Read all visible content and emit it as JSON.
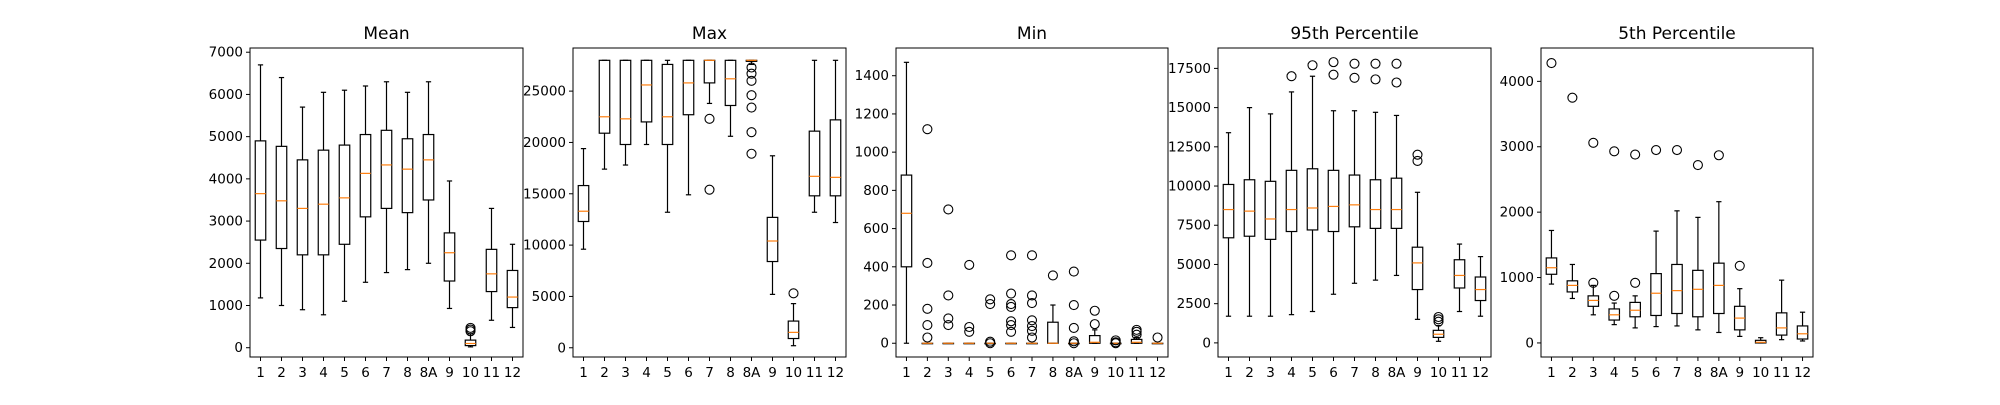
{
  "style": {
    "box_color": "#000000",
    "median_color": "#ff7f0e",
    "flier_color": "#000000",
    "background": "#ffffff"
  },
  "chart_data": [
    {
      "type": "boxplot",
      "title": "Mean",
      "categories": [
        "1",
        "2",
        "3",
        "4",
        "5",
        "6",
        "7",
        "8",
        "8A",
        "9",
        "10",
        "11",
        "12"
      ],
      "ylim": [
        -220,
        7100
      ],
      "yticks": [
        0,
        1000,
        2000,
        3000,
        4000,
        5000,
        6000,
        7000
      ],
      "ytick_labels": [
        "0",
        "1000",
        "2000",
        "3000",
        "4000",
        "5000",
        "6000",
        "7000"
      ],
      "boxes": [
        {
          "whislo": 1180,
          "q1": 2550,
          "med": 3650,
          "q3": 4900,
          "whishi": 6700,
          "fliers": []
        },
        {
          "whislo": 1000,
          "q1": 2350,
          "med": 3480,
          "q3": 4770,
          "whishi": 6400,
          "fliers": []
        },
        {
          "whislo": 900,
          "q1": 2200,
          "med": 3300,
          "q3": 4450,
          "whishi": 5700,
          "fliers": []
        },
        {
          "whislo": 780,
          "q1": 2200,
          "med": 3400,
          "q3": 4680,
          "whishi": 6050,
          "fliers": []
        },
        {
          "whislo": 1100,
          "q1": 2450,
          "med": 3550,
          "q3": 4800,
          "whishi": 6100,
          "fliers": []
        },
        {
          "whislo": 1550,
          "q1": 3100,
          "med": 4130,
          "q3": 5050,
          "whishi": 6200,
          "fliers": []
        },
        {
          "whislo": 1780,
          "q1": 3300,
          "med": 4330,
          "q3": 5150,
          "whishi": 6300,
          "fliers": []
        },
        {
          "whislo": 1850,
          "q1": 3200,
          "med": 4230,
          "q3": 4950,
          "whishi": 6050,
          "fliers": []
        },
        {
          "whislo": 2000,
          "q1": 3500,
          "med": 4450,
          "q3": 5050,
          "whishi": 6300,
          "fliers": []
        },
        {
          "whislo": 930,
          "q1": 1580,
          "med": 2250,
          "q3": 2720,
          "whishi": 3950,
          "fliers": []
        },
        {
          "whislo": 20,
          "q1": 50,
          "med": 100,
          "q3": 180,
          "whishi": 330,
          "fliers": [
            390,
            430,
            470
          ]
        },
        {
          "whislo": 650,
          "q1": 1330,
          "med": 1750,
          "q3": 2330,
          "whishi": 3300,
          "fliers": []
        },
        {
          "whislo": 480,
          "q1": 950,
          "med": 1200,
          "q3": 1830,
          "whishi": 2450,
          "fliers": []
        }
      ]
    },
    {
      "type": "boxplot",
      "title": "Max",
      "categories": [
        "1",
        "2",
        "3",
        "4",
        "5",
        "6",
        "7",
        "8",
        "8A",
        "9",
        "10",
        "11",
        "12"
      ],
      "ylim": [
        -900,
        29200
      ],
      "yticks": [
        0,
        5000,
        10000,
        15000,
        20000,
        25000
      ],
      "ytick_labels": [
        "0",
        "5000",
        "10000",
        "15000",
        "20000",
        "25000"
      ],
      "boxes": [
        {
          "whislo": 9600,
          "q1": 12300,
          "med": 13300,
          "q3": 15800,
          "whishi": 19400,
          "fliers": []
        },
        {
          "whislo": 17400,
          "q1": 20900,
          "med": 22500,
          "q3": 28000,
          "whishi": 28000,
          "fliers": []
        },
        {
          "whislo": 17800,
          "q1": 19800,
          "med": 22300,
          "q3": 28000,
          "whishi": 28000,
          "fliers": []
        },
        {
          "whislo": 19800,
          "q1": 22000,
          "med": 25600,
          "q3": 28000,
          "whishi": 28000,
          "fliers": []
        },
        {
          "whislo": 13200,
          "q1": 19800,
          "med": 22500,
          "q3": 27600,
          "whishi": 28000,
          "fliers": []
        },
        {
          "whislo": 14900,
          "q1": 22700,
          "med": 25800,
          "q3": 28000,
          "whishi": 28000,
          "fliers": []
        },
        {
          "whislo": 23800,
          "q1": 25800,
          "med": 28000,
          "q3": 28000,
          "whishi": 28000,
          "fliers": [
            22300,
            15400
          ]
        },
        {
          "whislo": 20600,
          "q1": 23600,
          "med": 26200,
          "q3": 28000,
          "whishi": 28000,
          "fliers": []
        },
        {
          "whislo": 27600,
          "q1": 27900,
          "med": 28000,
          "q3": 28000,
          "whishi": 28000,
          "fliers": [
            27300,
            26700,
            26000,
            24600,
            23400,
            21000,
            18900
          ]
        },
        {
          "whislo": 5200,
          "q1": 8400,
          "med": 10400,
          "q3": 12700,
          "whishi": 18700,
          "fliers": []
        },
        {
          "whislo": 200,
          "q1": 900,
          "med": 1500,
          "q3": 2600,
          "whishi": 4300,
          "fliers": [
            5300
          ]
        },
        {
          "whislo": 13200,
          "q1": 14800,
          "med": 16700,
          "q3": 21100,
          "whishi": 28000,
          "fliers": []
        },
        {
          "whislo": 12200,
          "q1": 14800,
          "med": 16600,
          "q3": 22200,
          "whishi": 28000,
          "fliers": []
        }
      ]
    },
    {
      "type": "boxplot",
      "title": "Min",
      "categories": [
        "1",
        "2",
        "3",
        "4",
        "5",
        "6",
        "7",
        "8",
        "8A",
        "9",
        "10",
        "11",
        "12"
      ],
      "ylim": [
        -72,
        1545
      ],
      "yticks": [
        0,
        200,
        400,
        600,
        800,
        1000,
        1200,
        1400
      ],
      "ytick_labels": [
        "0",
        "200",
        "400",
        "600",
        "800",
        "1000",
        "1200",
        "1400"
      ],
      "boxes": [
        {
          "whislo": 0,
          "q1": 400,
          "med": 680,
          "q3": 880,
          "whishi": 1470,
          "fliers": []
        },
        {
          "whislo": 0,
          "q1": 0,
          "med": 0,
          "q3": 0,
          "whishi": 0,
          "fliers": [
            30,
            95,
            180,
            420,
            1120
          ]
        },
        {
          "whislo": 0,
          "q1": 0,
          "med": 0,
          "q3": 0,
          "whishi": 0,
          "fliers": [
            95,
            130,
            250,
            700
          ]
        },
        {
          "whislo": 0,
          "q1": 0,
          "med": 0,
          "q3": 0,
          "whishi": 0,
          "fliers": [
            60,
            85,
            410
          ]
        },
        {
          "whislo": 0,
          "q1": 0,
          "med": 0,
          "q3": 0,
          "whishi": 0,
          "fliers": [
            0,
            8,
            205,
            230
          ]
        },
        {
          "whislo": 0,
          "q1": 0,
          "med": 0,
          "q3": 0,
          "whishi": 0,
          "fliers": [
            60,
            95,
            115,
            190,
            205,
            260,
            460
          ]
        },
        {
          "whislo": 0,
          "q1": 0,
          "med": 0,
          "q3": 0,
          "whishi": 0,
          "fliers": [
            30,
            65,
            90,
            120,
            210,
            250,
            460
          ]
        },
        {
          "whislo": 0,
          "q1": 0,
          "med": 0,
          "q3": 110,
          "whishi": 200,
          "fliers": [
            355
          ]
        },
        {
          "whislo": 0,
          "q1": 0,
          "med": 0,
          "q3": 0,
          "whishi": 0,
          "fliers": [
            0,
            10,
            80,
            200,
            375
          ]
        },
        {
          "whislo": 0,
          "q1": 0,
          "med": 5,
          "q3": 40,
          "whishi": 70,
          "fliers": [
            100,
            170
          ]
        },
        {
          "whislo": 0,
          "q1": 0,
          "med": 0,
          "q3": 0,
          "whishi": 0,
          "fliers": [
            0,
            5,
            15
          ]
        },
        {
          "whislo": 0,
          "q1": 0,
          "med": 5,
          "q3": 20,
          "whishi": 30,
          "fliers": [
            45,
            60,
            70
          ]
        },
        {
          "whislo": 0,
          "q1": 0,
          "med": 0,
          "q3": 0,
          "whishi": 0,
          "fliers": [
            30
          ]
        }
      ]
    },
    {
      "type": "boxplot",
      "title": "95th Percentile",
      "categories": [
        "1",
        "2",
        "3",
        "4",
        "5",
        "6",
        "7",
        "8",
        "8A",
        "9",
        "10",
        "11",
        "12"
      ],
      "ylim": [
        -900,
        18800
      ],
      "yticks": [
        0,
        2500,
        5000,
        7500,
        10000,
        12500,
        15000,
        17500
      ],
      "ytick_labels": [
        "0",
        "2500",
        "5000",
        "7500",
        "10000",
        "12500",
        "15000",
        "17500"
      ],
      "boxes": [
        {
          "whislo": 1700,
          "q1": 6700,
          "med": 8500,
          "q3": 10100,
          "whishi": 13400,
          "fliers": []
        },
        {
          "whislo": 1700,
          "q1": 6800,
          "med": 8400,
          "q3": 10400,
          "whishi": 15000,
          "fliers": []
        },
        {
          "whislo": 1700,
          "q1": 6600,
          "med": 7900,
          "q3": 10300,
          "whishi": 14600,
          "fliers": []
        },
        {
          "whislo": 1800,
          "q1": 7100,
          "med": 8500,
          "q3": 11000,
          "whishi": 16000,
          "fliers": [
            17000
          ]
        },
        {
          "whislo": 2000,
          "q1": 7200,
          "med": 8600,
          "q3": 11100,
          "whishi": 17000,
          "fliers": [
            17700
          ]
        },
        {
          "whislo": 3100,
          "q1": 7100,
          "med": 8700,
          "q3": 11000,
          "whishi": 14800,
          "fliers": [
            17100,
            17900
          ]
        },
        {
          "whislo": 3800,
          "q1": 7400,
          "med": 8800,
          "q3": 10700,
          "whishi": 14800,
          "fliers": [
            16900,
            17800
          ]
        },
        {
          "whislo": 4000,
          "q1": 7300,
          "med": 8500,
          "q3": 10400,
          "whishi": 14700,
          "fliers": [
            16800,
            17800
          ]
        },
        {
          "whislo": 4300,
          "q1": 7300,
          "med": 8500,
          "q3": 10500,
          "whishi": 14500,
          "fliers": [
            16600,
            17800
          ]
        },
        {
          "whislo": 1500,
          "q1": 3400,
          "med": 5100,
          "q3": 6100,
          "whishi": 9600,
          "fliers": [
            11600,
            12000
          ]
        },
        {
          "whislo": 100,
          "q1": 350,
          "med": 550,
          "q3": 800,
          "whishi": 1100,
          "fliers": [
            1350,
            1500,
            1650
          ]
        },
        {
          "whislo": 2000,
          "q1": 3500,
          "med": 4300,
          "q3": 5300,
          "whishi": 6300,
          "fliers": []
        },
        {
          "whislo": 1700,
          "q1": 2700,
          "med": 3400,
          "q3": 4200,
          "whishi": 5500,
          "fliers": []
        }
      ]
    },
    {
      "type": "boxplot",
      "title": "5th Percentile",
      "categories": [
        "1",
        "2",
        "3",
        "4",
        "5",
        "6",
        "7",
        "8",
        "8A",
        "9",
        "10",
        "11",
        "12"
      ],
      "ylim": [
        -215,
        4510
      ],
      "yticks": [
        0,
        1000,
        2000,
        3000,
        4000
      ],
      "ytick_labels": [
        "0",
        "1000",
        "2000",
        "3000",
        "4000"
      ],
      "boxes": [
        {
          "whislo": 900,
          "q1": 1050,
          "med": 1150,
          "q3": 1300,
          "whishi": 1720,
          "fliers": [
            4280
          ]
        },
        {
          "whislo": 680,
          "q1": 780,
          "med": 880,
          "q3": 950,
          "whishi": 1200,
          "fliers": [
            3750
          ]
        },
        {
          "whislo": 430,
          "q1": 560,
          "med": 650,
          "q3": 720,
          "whishi": 880,
          "fliers": [
            920,
            3060
          ]
        },
        {
          "whislo": 280,
          "q1": 350,
          "med": 430,
          "q3": 520,
          "whishi": 610,
          "fliers": [
            720,
            2930
          ]
        },
        {
          "whislo": 230,
          "q1": 400,
          "med": 500,
          "q3": 620,
          "whishi": 720,
          "fliers": [
            920,
            2880
          ]
        },
        {
          "whislo": 250,
          "q1": 420,
          "med": 760,
          "q3": 1060,
          "whishi": 1710,
          "fliers": [
            2950
          ]
        },
        {
          "whislo": 260,
          "q1": 450,
          "med": 800,
          "q3": 1200,
          "whishi": 2020,
          "fliers": [
            2950
          ]
        },
        {
          "whislo": 200,
          "q1": 400,
          "med": 820,
          "q3": 1110,
          "whishi": 1920,
          "fliers": [
            2720
          ]
        },
        {
          "whislo": 160,
          "q1": 450,
          "med": 880,
          "q3": 1220,
          "whishi": 2160,
          "fliers": [
            2870
          ]
        },
        {
          "whislo": 100,
          "q1": 200,
          "med": 380,
          "q3": 560,
          "whishi": 830,
          "fliers": [
            1180
          ]
        },
        {
          "whislo": 0,
          "q1": 0,
          "med": 10,
          "q3": 40,
          "whishi": 80,
          "fliers": []
        },
        {
          "whislo": 50,
          "q1": 120,
          "med": 230,
          "q3": 460,
          "whishi": 960,
          "fliers": []
        },
        {
          "whislo": 30,
          "q1": 60,
          "med": 140,
          "q3": 260,
          "whishi": 470,
          "fliers": []
        }
      ]
    }
  ]
}
